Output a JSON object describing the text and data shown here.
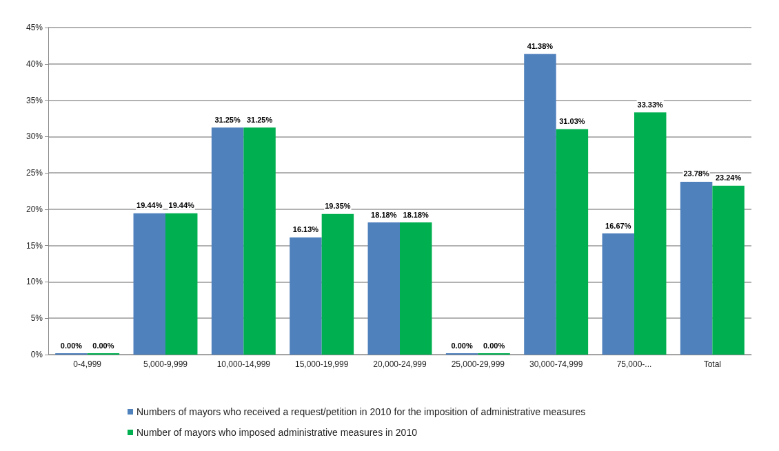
{
  "chart_data": {
    "type": "bar",
    "categories": [
      "0-4,999",
      "5,000-9,999",
      "10,000-14,999",
      "15,000-19,999",
      "20,000-24,999",
      "25,000-29,999",
      "30,000-74,999",
      "75,000-...",
      "Total"
    ],
    "series": [
      {
        "name": "Numbers of mayors who received a request/petition in 2010 for the imposition of administrative measures",
        "color": "#4f81bd",
        "values": [
          0,
          19.44,
          31.25,
          16.13,
          18.18,
          0,
          41.38,
          16.67,
          23.78
        ],
        "value_labels": [
          "0.00%",
          "19.44%",
          "31.25%",
          "16.13%",
          "18.18%",
          "0.00%",
          "41.38%",
          "16.67%",
          "23.78%"
        ]
      },
      {
        "name": "Number of mayors who imposed administrative measures in 2010",
        "color": "#00b050",
        "values": [
          0,
          19.44,
          31.25,
          19.35,
          18.18,
          0,
          31.03,
          33.33,
          23.24
        ],
        "value_labels": [
          "0.00%",
          "19.44%",
          "31.25%",
          "19.35%",
          "18.18%",
          "0.00%",
          "31.03%",
          "33.33%",
          "23.24%"
        ]
      }
    ],
    "ylim": [
      0,
      45
    ],
    "yticks": [
      {
        "value": 0,
        "label": "0%"
      },
      {
        "value": 5,
        "label": "5%"
      },
      {
        "value": 10,
        "label": "10%"
      },
      {
        "value": 15,
        "label": "15%"
      },
      {
        "value": 20,
        "label": "20%"
      },
      {
        "value": 25,
        "label": "25%"
      },
      {
        "value": 30,
        "label": "30%"
      },
      {
        "value": 35,
        "label": "35%"
      },
      {
        "value": 40,
        "label": "40%"
      },
      {
        "value": 45,
        "label": "45%"
      }
    ],
    "grid": "y",
    "legend": "bottom"
  }
}
